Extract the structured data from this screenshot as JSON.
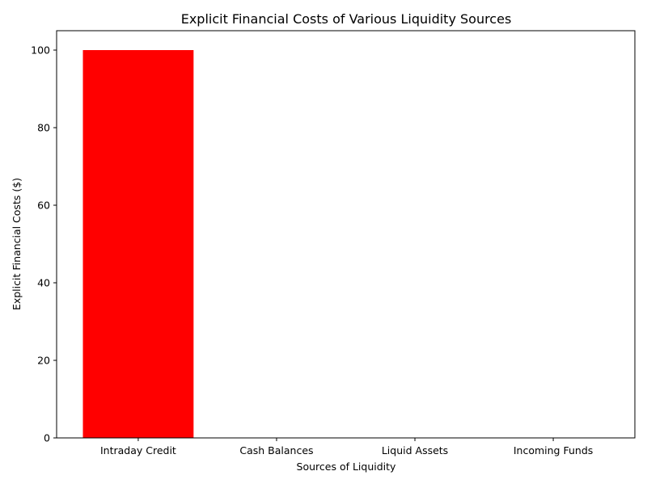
{
  "chart_data": {
    "type": "bar",
    "title": "Explicit Financial Costs of Various Liquidity Sources",
    "xlabel": "Sources of Liquidity",
    "ylabel": "Explicit Financial Costs ($)",
    "categories": [
      "Intraday Credit",
      "Cash Balances",
      "Liquid Assets",
      "Incoming Funds"
    ],
    "values": [
      100,
      0,
      0,
      0
    ],
    "ylim": [
      0,
      105
    ],
    "yticks": [
      0,
      20,
      40,
      60,
      80,
      100
    ],
    "bar_colors": [
      "#ff0000",
      "#ff0000",
      "#ff0000",
      "#ff0000"
    ],
    "grid": false,
    "legend": "none"
  }
}
